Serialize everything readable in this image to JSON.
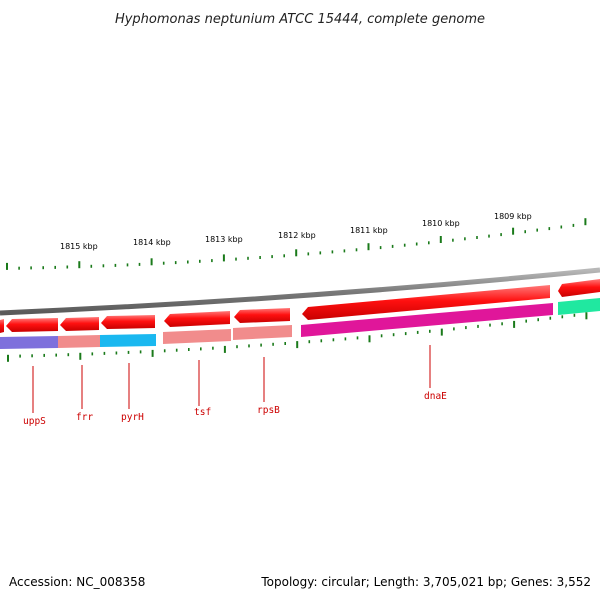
{
  "title": "Hyphomonas neptunium ATCC 15444, complete genome",
  "footer": {
    "accession": "Accession: NC_008358",
    "summary": "Topology: circular; Length: 3,705,021 bp; Genes: 3,552"
  },
  "colors": {
    "backbone": "#8a8a8a",
    "forward_cds": "#ff0000",
    "reverse_cds": "#ff0000",
    "tick": "#1a7a1a",
    "gene_label": "#cc0000"
  },
  "scale": {
    "unit": "kbp",
    "labels": [
      "1815 kbp",
      "1814 kbp",
      "1813 kbp",
      "1812 kbp",
      "1811 kbp",
      "1810 kbp",
      "1809 kbp"
    ]
  },
  "genes": [
    {
      "name": "uppS",
      "strand": "reverse",
      "category_color": "#7060d8"
    },
    {
      "name": "frr",
      "strand": "reverse",
      "category_color": "#f08080"
    },
    {
      "name": "pyrH",
      "strand": "reverse",
      "category_color": "#1ab8f0"
    },
    {
      "name": "tsf",
      "strand": "reverse",
      "category_color": "#f08080"
    },
    {
      "name": "rpsB",
      "strand": "reverse",
      "category_color": "#f08080"
    },
    {
      "name": "dnaE",
      "strand": "reverse",
      "category_color": "#e0169a"
    }
  ]
}
